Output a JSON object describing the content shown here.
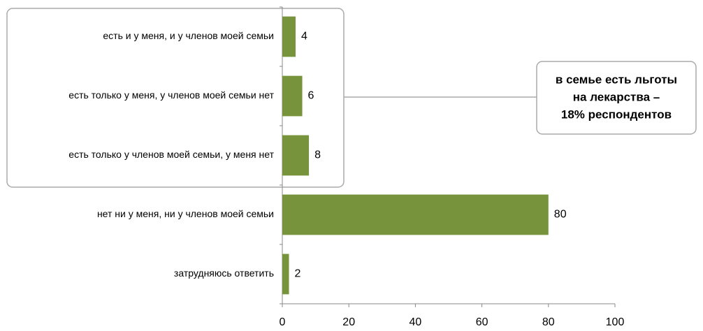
{
  "chart_data": {
    "type": "bar",
    "orientation": "horizontal",
    "categories": [
      "есть и у меня, и у членов моей семьи",
      "есть только у меня, у членов моей семьи нет",
      "есть только у членов моей семьи, у меня нет",
      "нет ни у меня, ни у членов моей семьи",
      "затрудняюсь ответить"
    ],
    "values": [
      4,
      6,
      8,
      80,
      2
    ],
    "color": "#77933c",
    "xlim": [
      0,
      100
    ],
    "xticks": [
      0,
      20,
      40,
      60,
      80,
      100
    ],
    "annotation_lines": [
      "в семье есть льготы",
      "на лекарства –",
      "18% респондентов"
    ]
  }
}
